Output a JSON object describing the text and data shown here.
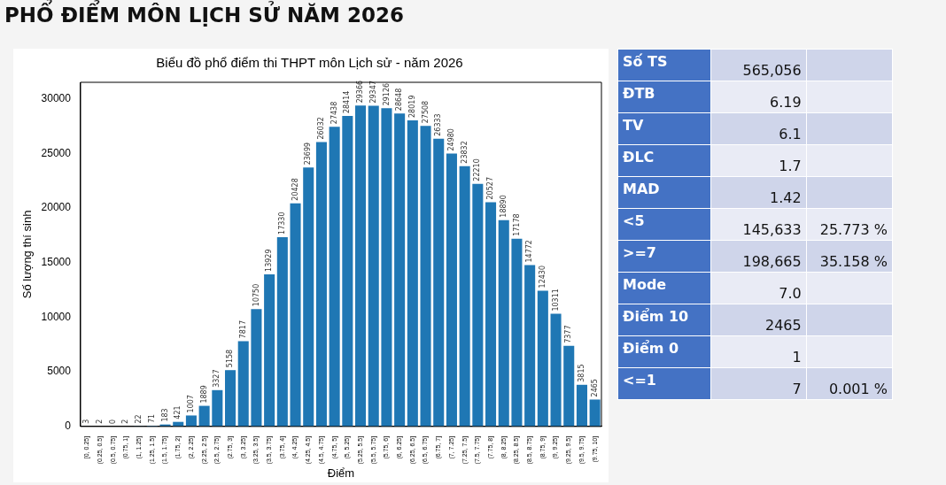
{
  "chart_data": [
    {
      "type": "bar",
      "title": "PHỔ ĐIỂM MÔN LỊCH SỬ NĂM 2026",
      "subtitle": "Biểu đồ phổ điểm thi THPT môn Lịch sử - năm 2026",
      "xlabel": "Điểm",
      "ylabel": "Số lượng thí sinh",
      "categories": [
        "[0, 0.25]",
        "(0.25, 0.5]",
        "(0.5, 0.75]",
        "(0.75, 1]",
        "(1, 1.25]",
        "(1.25, 1.5]",
        "(1.5, 1.75]",
        "(1.75, 2]",
        "(2, 2.25]",
        "(2.25, 2.5]",
        "(2.5, 2.75]",
        "(2.75, 3]",
        "(3, 3.25]",
        "(3.25, 3.5]",
        "(3.5, 3.75]",
        "(3.75, 4]",
        "(4, 4.25]",
        "(4.25, 4.5]",
        "(4.5, 4.75]",
        "(4.75, 5]",
        "(5, 5.25]",
        "(5.25, 5.5]",
        "(5.5, 5.75]",
        "(5.75, 6]",
        "(6, 6.25]",
        "(6.25, 6.5]",
        "(6.5, 6.75]",
        "(6.75, 7]",
        "(7, 7.25]",
        "(7.25, 7.5]",
        "(7.5, 7.75]",
        "(7.75, 8]",
        "(8, 8.25]",
        "(8.25, 8.5]",
        "(8.5, 8.75]",
        "(8.75, 9]",
        "(9, 9.25]",
        "(9.25, 9.5]",
        "(9.5, 9.75]",
        "(9.75, 10]"
      ],
      "values": [
        3,
        2,
        0,
        2,
        22,
        71,
        183,
        421,
        1007,
        1889,
        3327,
        5158,
        7817,
        10750,
        13929,
        17330,
        20428,
        23699,
        26032,
        27438,
        28414,
        29366,
        29347,
        29126,
        28648,
        28019,
        27508,
        26333,
        24980,
        23832,
        22210,
        20527,
        18890,
        17178,
        14772,
        12430,
        10311,
        7377,
        3815,
        2465
      ],
      "color": "#1f77b4",
      "ylim": [
        0,
        31500
      ],
      "yticks": [
        0,
        5000,
        10000,
        15000,
        20000,
        25000,
        30000
      ],
      "grid": false,
      "legend": false,
      "data_labels": true
    },
    {
      "type": "other",
      "annotations": [
        "Số TS",
        "565,056",
        "ĐTB",
        "6.19",
        "TV",
        "6.1",
        "ĐLC",
        "1.7",
        "MAD",
        "1.42",
        "<5",
        "145,633",
        "25.773 %",
        ">=7",
        "198,665",
        "35.158 %",
        "Mode",
        "7.0",
        "Điểm 10",
        "2465",
        "Điểm 0",
        "1",
        "<=1",
        "7",
        "0.001 %"
      ]
    }
  ]
}
